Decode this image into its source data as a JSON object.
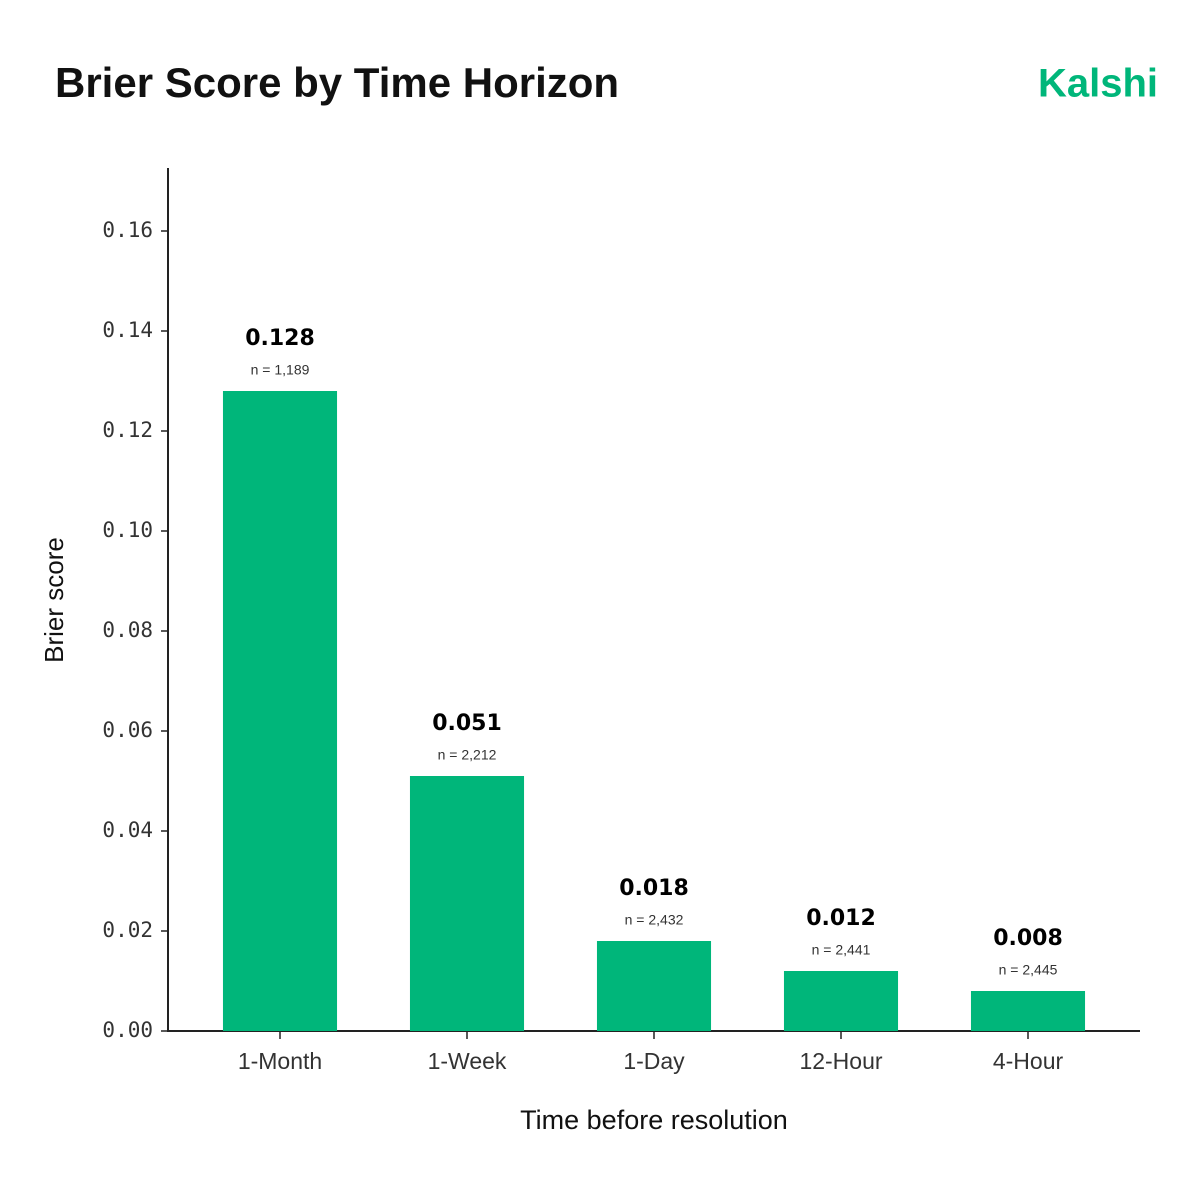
{
  "brand": "Kalshi",
  "chart_data": {
    "type": "bar",
    "title": "Brier Score by Time Horizon",
    "x_label": "Time before resolution",
    "y_label": "Brier score",
    "categories": [
      "1-Month",
      "1-Week",
      "1-Day",
      "12-Hour",
      "4-Hour"
    ],
    "values": [
      0.128,
      0.051,
      0.018,
      0.012,
      0.008
    ],
    "n_labels": [
      "n = 1,189",
      "n = 2,212",
      "n = 2,432",
      "n = 2,441",
      "n = 2,445"
    ],
    "color": "#00b67a",
    "ylim": [
      0,
      0.1726
    ],
    "yticks": [
      {
        "value": 0,
        "label": "0.00"
      },
      0.02,
      0.04,
      0.06,
      0.08,
      {
        "value": 0.1,
        "label": "0.10"
      },
      0.12,
      0.14,
      0.16
    ],
    "grid": false
  }
}
